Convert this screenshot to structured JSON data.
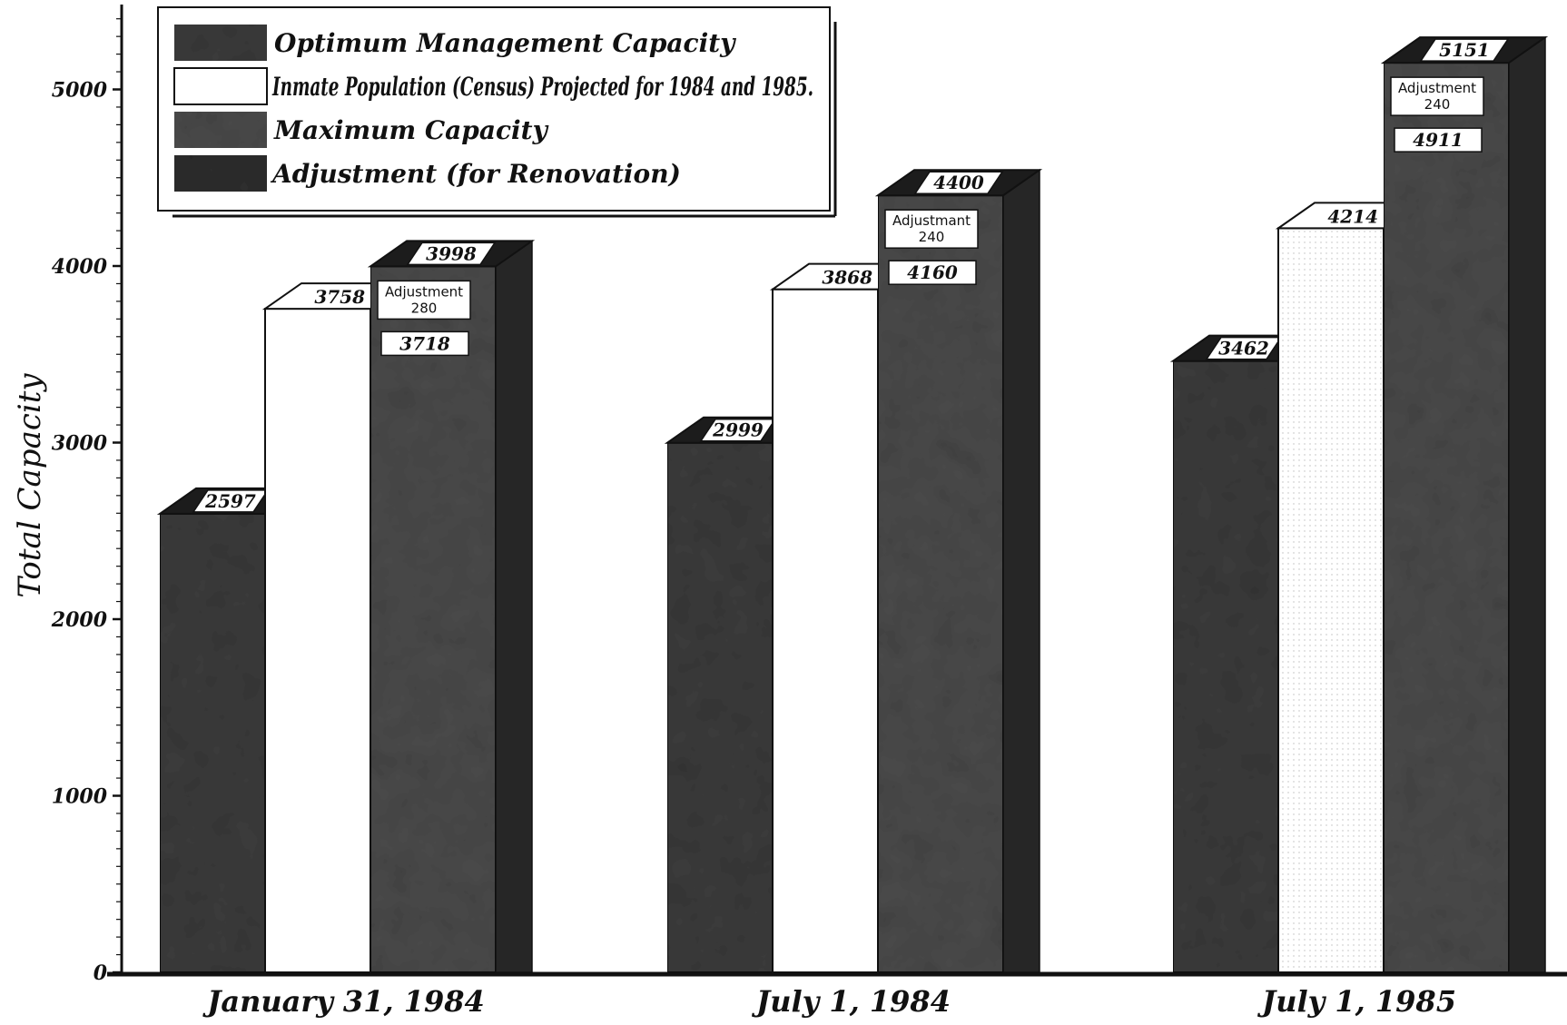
{
  "chart_data": {
    "type": "bar",
    "ylabel": "Total Capacity",
    "ylim": [
      0,
      5400
    ],
    "yticks": [
      0,
      1000,
      2000,
      3000,
      4000,
      5000
    ],
    "categories": [
      "January 31, 1984",
      "July 1, 1984",
      "July 1, 1985"
    ],
    "series": [
      {
        "name": "Optimum Management Capacity",
        "values": [
          2597,
          2999,
          3462
        ],
        "color": "#3b3b3b"
      },
      {
        "name": "Inmate Population (Census) Projected for 1984 and 1985.",
        "values": [
          3758,
          3868,
          4214
        ],
        "color": "#ffffff"
      },
      {
        "name": "Maximum Capacity",
        "values": [
          3718,
          4160,
          4911
        ],
        "color": "#4a4a4a"
      },
      {
        "name": "Adjustment (for Renovation)",
        "values": [
          280,
          240,
          240
        ],
        "color": "#2e2e2e"
      }
    ],
    "stack_totals": [
      3998,
      4400,
      5151
    ],
    "adjustment_word": [
      "Adjustment",
      "Adjustmant",
      "Adjustment"
    ],
    "legend_position": "top-left",
    "grid": false
  }
}
